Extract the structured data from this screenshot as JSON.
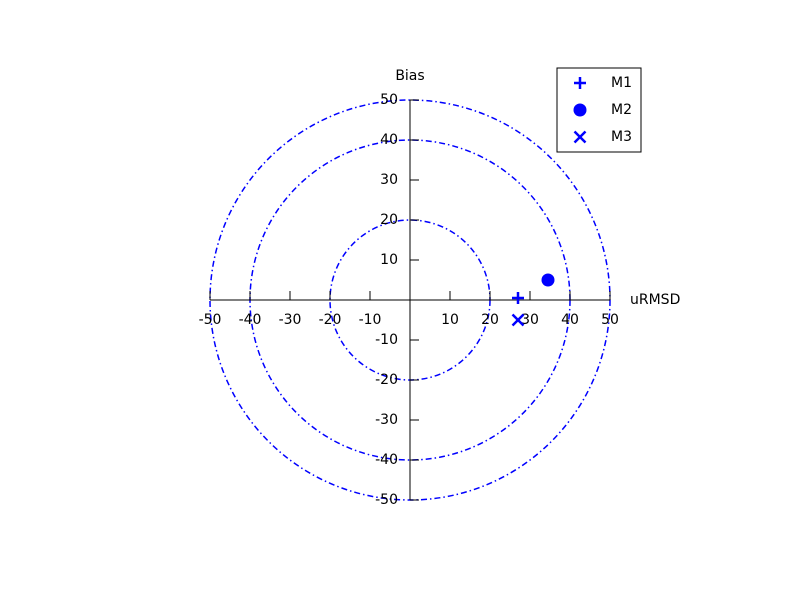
{
  "chart_data": {
    "type": "scatter",
    "title": "",
    "xlabel": "uRMSD",
    "ylabel": "Bias",
    "xlim": [
      -50,
      50
    ],
    "ylim": [
      -50,
      50
    ],
    "xticks": [
      -50,
      -40,
      -30,
      -20,
      -10,
      10,
      20,
      30,
      40,
      50
    ],
    "yticks": [
      -50,
      -40,
      -30,
      -20,
      -10,
      10,
      20,
      30,
      40,
      50
    ],
    "xtick_labels": [
      "-50",
      "-40",
      "-30",
      "-20",
      "-10",
      "10",
      "20",
      "30",
      "40",
      "50"
    ],
    "ytick_labels": [
      "-50",
      "-40",
      "-30",
      "-20",
      "-10",
      "10",
      "20",
      "30",
      "40",
      "50"
    ],
    "reference_circles": [
      20,
      40,
      50
    ],
    "circle_color": "#0000ff",
    "series": [
      {
        "name": "M1",
        "marker": "plus",
        "x": [
          27
        ],
        "y": [
          0.5
        ],
        "color": "#0000ff"
      },
      {
        "name": "M2",
        "marker": "circle",
        "x": [
          34.5
        ],
        "y": [
          5
        ],
        "color": "#0000ff"
      },
      {
        "name": "M3",
        "marker": "x",
        "x": [
          27
        ],
        "y": [
          -5
        ],
        "color": "#0000ff"
      }
    ],
    "legend_position": "top-right",
    "grid": false
  }
}
